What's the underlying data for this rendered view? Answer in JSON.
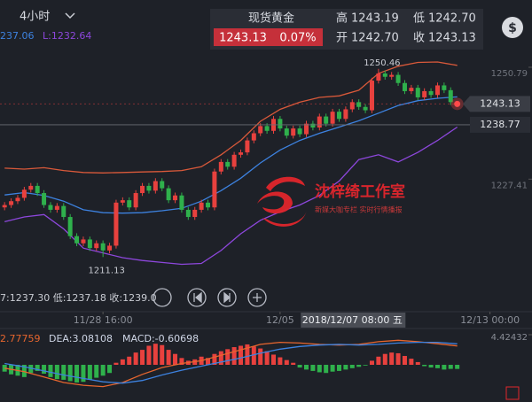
{
  "header": {
    "period": "4小时",
    "name": "现货黄金",
    "price": "1243.13",
    "change": "0.07%",
    "high_label": "高",
    "high": "1243.19",
    "low_label": "低",
    "low": "1242.70",
    "open_label": "开",
    "open": "1242.70",
    "close_label": "收",
    "close": "1243.13",
    "currency_icon": "$"
  },
  "watermark": {
    "title": "沈梓绮工作室",
    "subtitle": "新媒大咖专栏    实时行情播报"
  },
  "chart_data": [
    {
      "type": "candlestick",
      "categories": [
        null,
        null,
        null,
        null,
        null,
        null,
        null,
        null,
        null,
        null,
        null,
        null,
        null,
        null,
        null,
        null,
        null,
        null,
        null,
        null,
        null,
        null,
        null,
        null,
        null,
        null,
        null,
        null,
        null,
        null,
        null,
        null,
        null,
        null,
        null,
        null,
        null,
        null,
        null,
        null,
        null,
        null,
        null,
        null,
        null,
        null,
        null,
        null,
        null,
        null,
        null,
        null,
        null,
        null,
        null,
        null,
        null,
        null,
        null,
        null,
        null,
        null,
        null,
        null,
        null,
        null,
        null,
        null,
        null,
        null
      ],
      "open": [
        1221.5,
        1222.0,
        1222.8,
        1223.5,
        1225.2,
        1226.0,
        1224.5,
        1222.0,
        1221.0,
        1221.8,
        1219.5,
        1215.5,
        1214.0,
        1214.8,
        1213.0,
        1214.0,
        1212.5,
        1213.5,
        1222.5,
        1223.0,
        1221.5,
        1224.5,
        1226.0,
        1225.0,
        1227.0,
        1225.5,
        1223.0,
        1224.0,
        1221.0,
        1219.5,
        1221.0,
        1222.5,
        1221.5,
        1229.0,
        1231.0,
        1230.0,
        1232.5,
        1233.0,
        1235.5,
        1237.0,
        1238.5,
        1237.5,
        1240.0,
        1238.0,
        1236.5,
        1238.0,
        1236.8,
        1239.0,
        1238.2,
        1240.5,
        1239.0,
        1241.5,
        1240.0,
        1242.0,
        1243.5,
        1242.5,
        1241.8,
        1248.0,
        1249.5,
        1248.8,
        1249.2,
        1247.5,
        1245.8,
        1246.5,
        1244.5,
        1245.8,
        1245.0,
        1247.0,
        1246.0,
        1242.7
      ],
      "high": [
        1222.6,
        1223.4,
        1224.1,
        1225.8,
        1226.6,
        1226.6,
        1225.1,
        1222.6,
        1222.4,
        1222.4,
        1220.1,
        1216.1,
        1215.4,
        1215.4,
        1214.6,
        1214.6,
        1214.1,
        1223.1,
        1223.6,
        1223.6,
        1225.1,
        1226.6,
        1226.6,
        1227.6,
        1227.6,
        1226.1,
        1224.6,
        1224.6,
        1221.6,
        1221.6,
        1223.1,
        1223.1,
        1229.6,
        1231.6,
        1231.6,
        1233.1,
        1233.6,
        1236.1,
        1237.6,
        1239.1,
        1239.1,
        1240.6,
        1240.6,
        1238.6,
        1238.6,
        1238.6,
        1239.6,
        1239.6,
        1241.1,
        1241.1,
        1242.1,
        1242.1,
        1242.6,
        1244.1,
        1244.1,
        1243.1,
        1248.6,
        1250.46,
        1250.1,
        1249.8,
        1249.8,
        1248.1,
        1247.1,
        1247.1,
        1246.4,
        1246.4,
        1247.6,
        1247.6,
        1246.6,
        1243.19
      ],
      "low": [
        1220.9,
        1221.4,
        1222.2,
        1222.9,
        1224.6,
        1223.9,
        1221.4,
        1220.4,
        1220.4,
        1218.9,
        1214.9,
        1213.4,
        1213.4,
        1212.4,
        1212.4,
        1211.13,
        1211.9,
        1212.9,
        1221.9,
        1220.9,
        1220.9,
        1223.9,
        1224.4,
        1224.4,
        1224.9,
        1222.4,
        1222.4,
        1220.4,
        1218.9,
        1218.9,
        1220.4,
        1220.9,
        1220.9,
        1228.4,
        1229.4,
        1229.4,
        1231.9,
        1232.4,
        1234.9,
        1236.4,
        1236.9,
        1236.9,
        1237.4,
        1235.9,
        1235.9,
        1236.2,
        1236.2,
        1237.6,
        1237.6,
        1238.4,
        1238.4,
        1239.4,
        1239.4,
        1241.4,
        1241.9,
        1241.2,
        1241.2,
        1247.4,
        1248.2,
        1248.2,
        1246.9,
        1245.2,
        1245.2,
        1243.9,
        1243.9,
        1244.4,
        1244.4,
        1245.4,
        1242.9,
        1242.7
      ],
      "close": [
        1222.0,
        1222.8,
        1223.5,
        1225.2,
        1226.0,
        1224.5,
        1222.0,
        1221.0,
        1221.8,
        1219.5,
        1215.5,
        1214.0,
        1214.8,
        1213.0,
        1214.0,
        1212.5,
        1213.5,
        1222.5,
        1223.0,
        1221.5,
        1224.5,
        1226.0,
        1225.0,
        1227.0,
        1225.5,
        1223.0,
        1224.0,
        1221.0,
        1219.5,
        1221.0,
        1222.5,
        1221.5,
        1229.0,
        1231.0,
        1230.0,
        1232.5,
        1233.0,
        1235.5,
        1237.0,
        1238.5,
        1237.5,
        1240.0,
        1238.0,
        1236.5,
        1238.0,
        1236.8,
        1239.0,
        1238.2,
        1240.5,
        1239.0,
        1241.5,
        1240.0,
        1242.0,
        1243.5,
        1242.5,
        1241.8,
        1248.0,
        1249.5,
        1248.8,
        1249.2,
        1247.5,
        1245.8,
        1246.5,
        1244.5,
        1245.8,
        1245.0,
        1247.0,
        1246.0,
        1243.5,
        1243.13
      ],
      "up_color": "#e8413e",
      "down_color": "#2fb14c",
      "series": [
        {
          "color": "#d9593a",
          "x": [
            0,
            3,
            6,
            9,
            12,
            15,
            18,
            21,
            24,
            27,
            30,
            33,
            36,
            39,
            42,
            45,
            48,
            51,
            54,
            57,
            60,
            63,
            66,
            69
          ],
          "values": [
            1229.7,
            1229.5,
            1229.8,
            1229.2,
            1228.8,
            1228.7,
            1228.8,
            1228.9,
            1229.0,
            1229.2,
            1230.0,
            1232.5,
            1235.5,
            1239.5,
            1242.0,
            1243.5,
            1244.5,
            1244.8,
            1246.0,
            1249.5,
            1251.0,
            1251.8,
            1251.9,
            1251.2
          ]
        },
        {
          "color": "#3d82e0",
          "x": [
            0,
            3,
            6,
            9,
            12,
            15,
            18,
            21,
            24,
            27,
            30,
            33,
            36,
            39,
            42,
            45,
            48,
            51,
            54,
            57,
            60,
            63,
            66,
            69
          ],
          "values": [
            1224.1,
            1224.6,
            1224.0,
            1222.8,
            1221.0,
            1220.4,
            1220.3,
            1220.4,
            1220.8,
            1221.3,
            1222.8,
            1225.0,
            1227.6,
            1230.8,
            1233.5,
            1235.5,
            1237.0,
            1238.3,
            1239.6,
            1241.2,
            1242.8,
            1243.8,
            1244.3,
            1244.6
          ]
        },
        {
          "color": "#8d47dc",
          "x": [
            0,
            3,
            6,
            9,
            12,
            15,
            18,
            21,
            24,
            27,
            30,
            33,
            36,
            39,
            42,
            45,
            48,
            51,
            54,
            57,
            60,
            63,
            66,
            69
          ],
          "values": [
            1218.5,
            1219.5,
            1220.0,
            1217.0,
            1213.0,
            1212.0,
            1211.0,
            1210.4,
            1210.0,
            1209.6,
            1209.8,
            1212.5,
            1216.0,
            1218.8,
            1220.6,
            1222.0,
            1224.0,
            1227.0,
            1231.5,
            1232.5,
            1231.0,
            1233.0,
            1235.5,
            1238.3
          ]
        }
      ],
      "xlim": [
        -0.7,
        80.4
      ],
      "ylim": [
        1201,
        1263
      ],
      "yticks": [
        1250.79,
        1227.41
      ],
      "xticks": [
        {
          "value": 15,
          "label": "11/28 16:00"
        },
        {
          "value": 42,
          "label": "12/05"
        },
        {
          "value": 74,
          "label": "12/13 00:00"
        }
      ],
      "crosshair": {
        "value": 53,
        "label": "2018/12/07 08:00 五"
      },
      "price_lines": [
        1243.13,
        1238.77
      ],
      "annotations": [
        {
          "x": 57,
          "value": 1250.46
        },
        {
          "x": 15,
          "value": 1211.13
        }
      ],
      "indicator_text": [
        "237.06",
        "L:1232.64"
      ],
      "info_text": "7:1237.30 低:1237.18 收:1239.0"
    },
    {
      "type": "macd",
      "categories": [
        null,
        null,
        null,
        null,
        null,
        null,
        null,
        null,
        null,
        null,
        null,
        null,
        null,
        null,
        null,
        null,
        null,
        null,
        null,
        null,
        null,
        null,
        null,
        null,
        null,
        null,
        null,
        null,
        null,
        null,
        null,
        null,
        null,
        null,
        null,
        null,
        null,
        null,
        null,
        null,
        null,
        null,
        null,
        null,
        null,
        null,
        null,
        null,
        null,
        null,
        null,
        null,
        null,
        null,
        null,
        null,
        null,
        null,
        null,
        null,
        null,
        null,
        null,
        null,
        null,
        null,
        null,
        null,
        null,
        null
      ],
      "values": [
        -1.0,
        -1.4,
        -1.6,
        -1.8,
        -1.2,
        -0.9,
        -1.3,
        -1.8,
        -2.1,
        -2.2,
        -2.4,
        -2.6,
        -2.5,
        -2.2,
        -1.9,
        -1.6,
        -1.2,
        0.3,
        0.8,
        1.2,
        1.8,
        2.2,
        2.8,
        3.1,
        2.9,
        2.2,
        1.6,
        1.0,
        0.6,
        0.8,
        1.2,
        1.0,
        1.6,
        2.0,
        2.3,
        2.6,
        2.8,
        3.0,
        2.7,
        2.4,
        2.0,
        1.5,
        1.1,
        0.7,
        0.3,
        -0.4,
        -0.7,
        -0.9,
        -1.1,
        -1.2,
        -1.0,
        -0.9,
        -0.7,
        -0.5,
        -0.3,
        -0.1,
        0.6,
        1.2,
        1.6,
        1.8,
        1.7,
        1.3,
        0.9,
        0.4,
        -0.2,
        -0.4,
        -0.5,
        -0.7,
        -0.6,
        -0.60698
      ],
      "up_color": "#e8413e",
      "down_color": "#2fb14c",
      "series": [
        {
          "color": "#e8662e",
          "x": [
            0,
            3,
            6,
            9,
            12,
            15,
            18,
            21,
            24,
            27,
            30,
            33,
            36,
            39,
            42,
            45,
            48,
            51,
            54,
            57,
            60,
            63,
            66,
            69
          ],
          "values": [
            -0.5,
            -1.0,
            -1.8,
            -2.6,
            -3.0,
            -3.2,
            -2.6,
            -1.4,
            -0.4,
            0.2,
            0.6,
            1.4,
            2.2,
            3.0,
            3.3,
            3.2,
            3.0,
            2.9,
            3.0,
            3.4,
            3.6,
            3.4,
            3.1,
            2.77759
          ]
        },
        {
          "color": "#3d82e0",
          "x": [
            0,
            3,
            6,
            9,
            12,
            15,
            18,
            21,
            24,
            27,
            30,
            33,
            36,
            39,
            42,
            45,
            48,
            51,
            54,
            57,
            60,
            63,
            66,
            69
          ],
          "values": [
            0.2,
            -0.3,
            -0.9,
            -1.5,
            -2.0,
            -2.5,
            -2.7,
            -2.3,
            -1.5,
            -0.8,
            -0.2,
            0.4,
            1.0,
            1.7,
            2.3,
            2.7,
            2.9,
            3.0,
            2.9,
            3.0,
            3.2,
            3.3,
            3.3,
            3.08108
          ]
        }
      ],
      "xlim": [
        -0.7,
        80.4
      ],
      "ylim": [
        -4.42432,
        4.42432
      ],
      "yticks": [
        4.42432
      ],
      "legend_text": [
        "2.77759",
        "DEA:3.08108",
        "MACD:-0.60698"
      ]
    }
  ]
}
